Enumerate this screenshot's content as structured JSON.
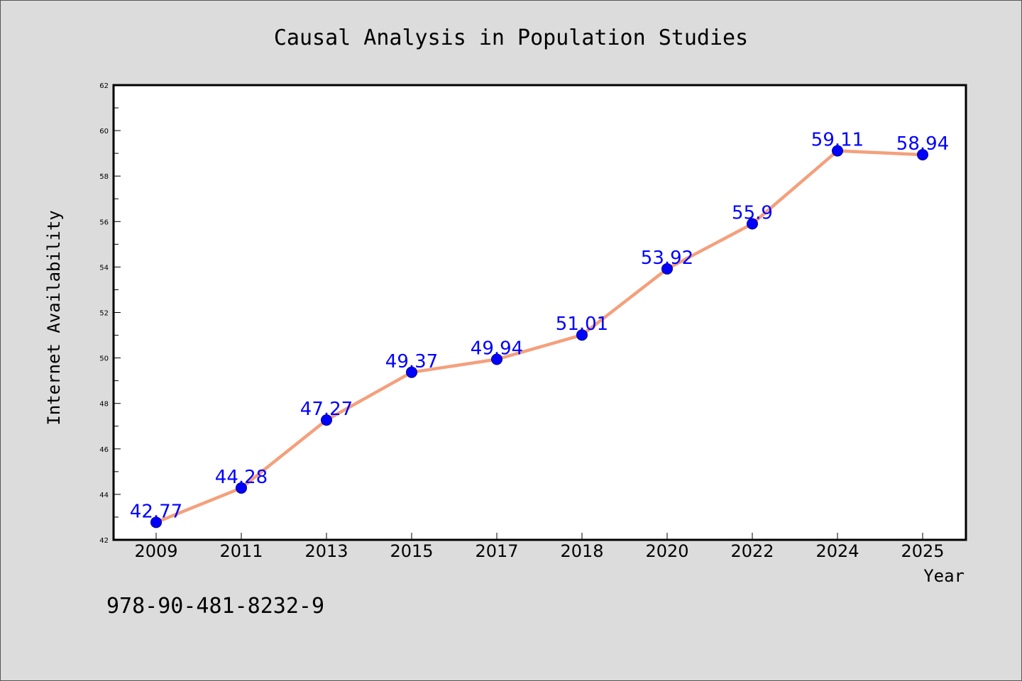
{
  "chart_data": {
    "type": "line",
    "title": "Causal Analysis in Population Studies",
    "xlabel": "Year",
    "ylabel": "Internet Availability",
    "categories": [
      "2009",
      "2011",
      "2013",
      "2015",
      "2017",
      "2018",
      "2020",
      "2022",
      "2024",
      "2025"
    ],
    "series": [
      {
        "values": [
          42.77,
          44.28,
          47.27,
          49.37,
          49.94,
          51.01,
          53.92,
          55.9,
          59.11,
          58.94
        ],
        "labels": [
          "42.77",
          "44.28",
          "47.27",
          "49.37",
          "49.94",
          "51.01",
          "53.92",
          "55.9",
          "59.11",
          "58.94"
        ]
      }
    ],
    "ylim": [
      42,
      62
    ],
    "yticks": [
      "42",
      "44",
      "46",
      "48",
      "50",
      "52",
      "54",
      "56",
      "58",
      "60",
      "62"
    ],
    "grid": false,
    "colors": {
      "line": "#f4a07c",
      "marker": "#0000ff",
      "marker_edge": "#000080",
      "data_label": "#0000ff",
      "background": "#dcdcdc",
      "plot_area": "#ffffff"
    }
  },
  "footer": {
    "isbn": "978-90-481-8232-9"
  }
}
